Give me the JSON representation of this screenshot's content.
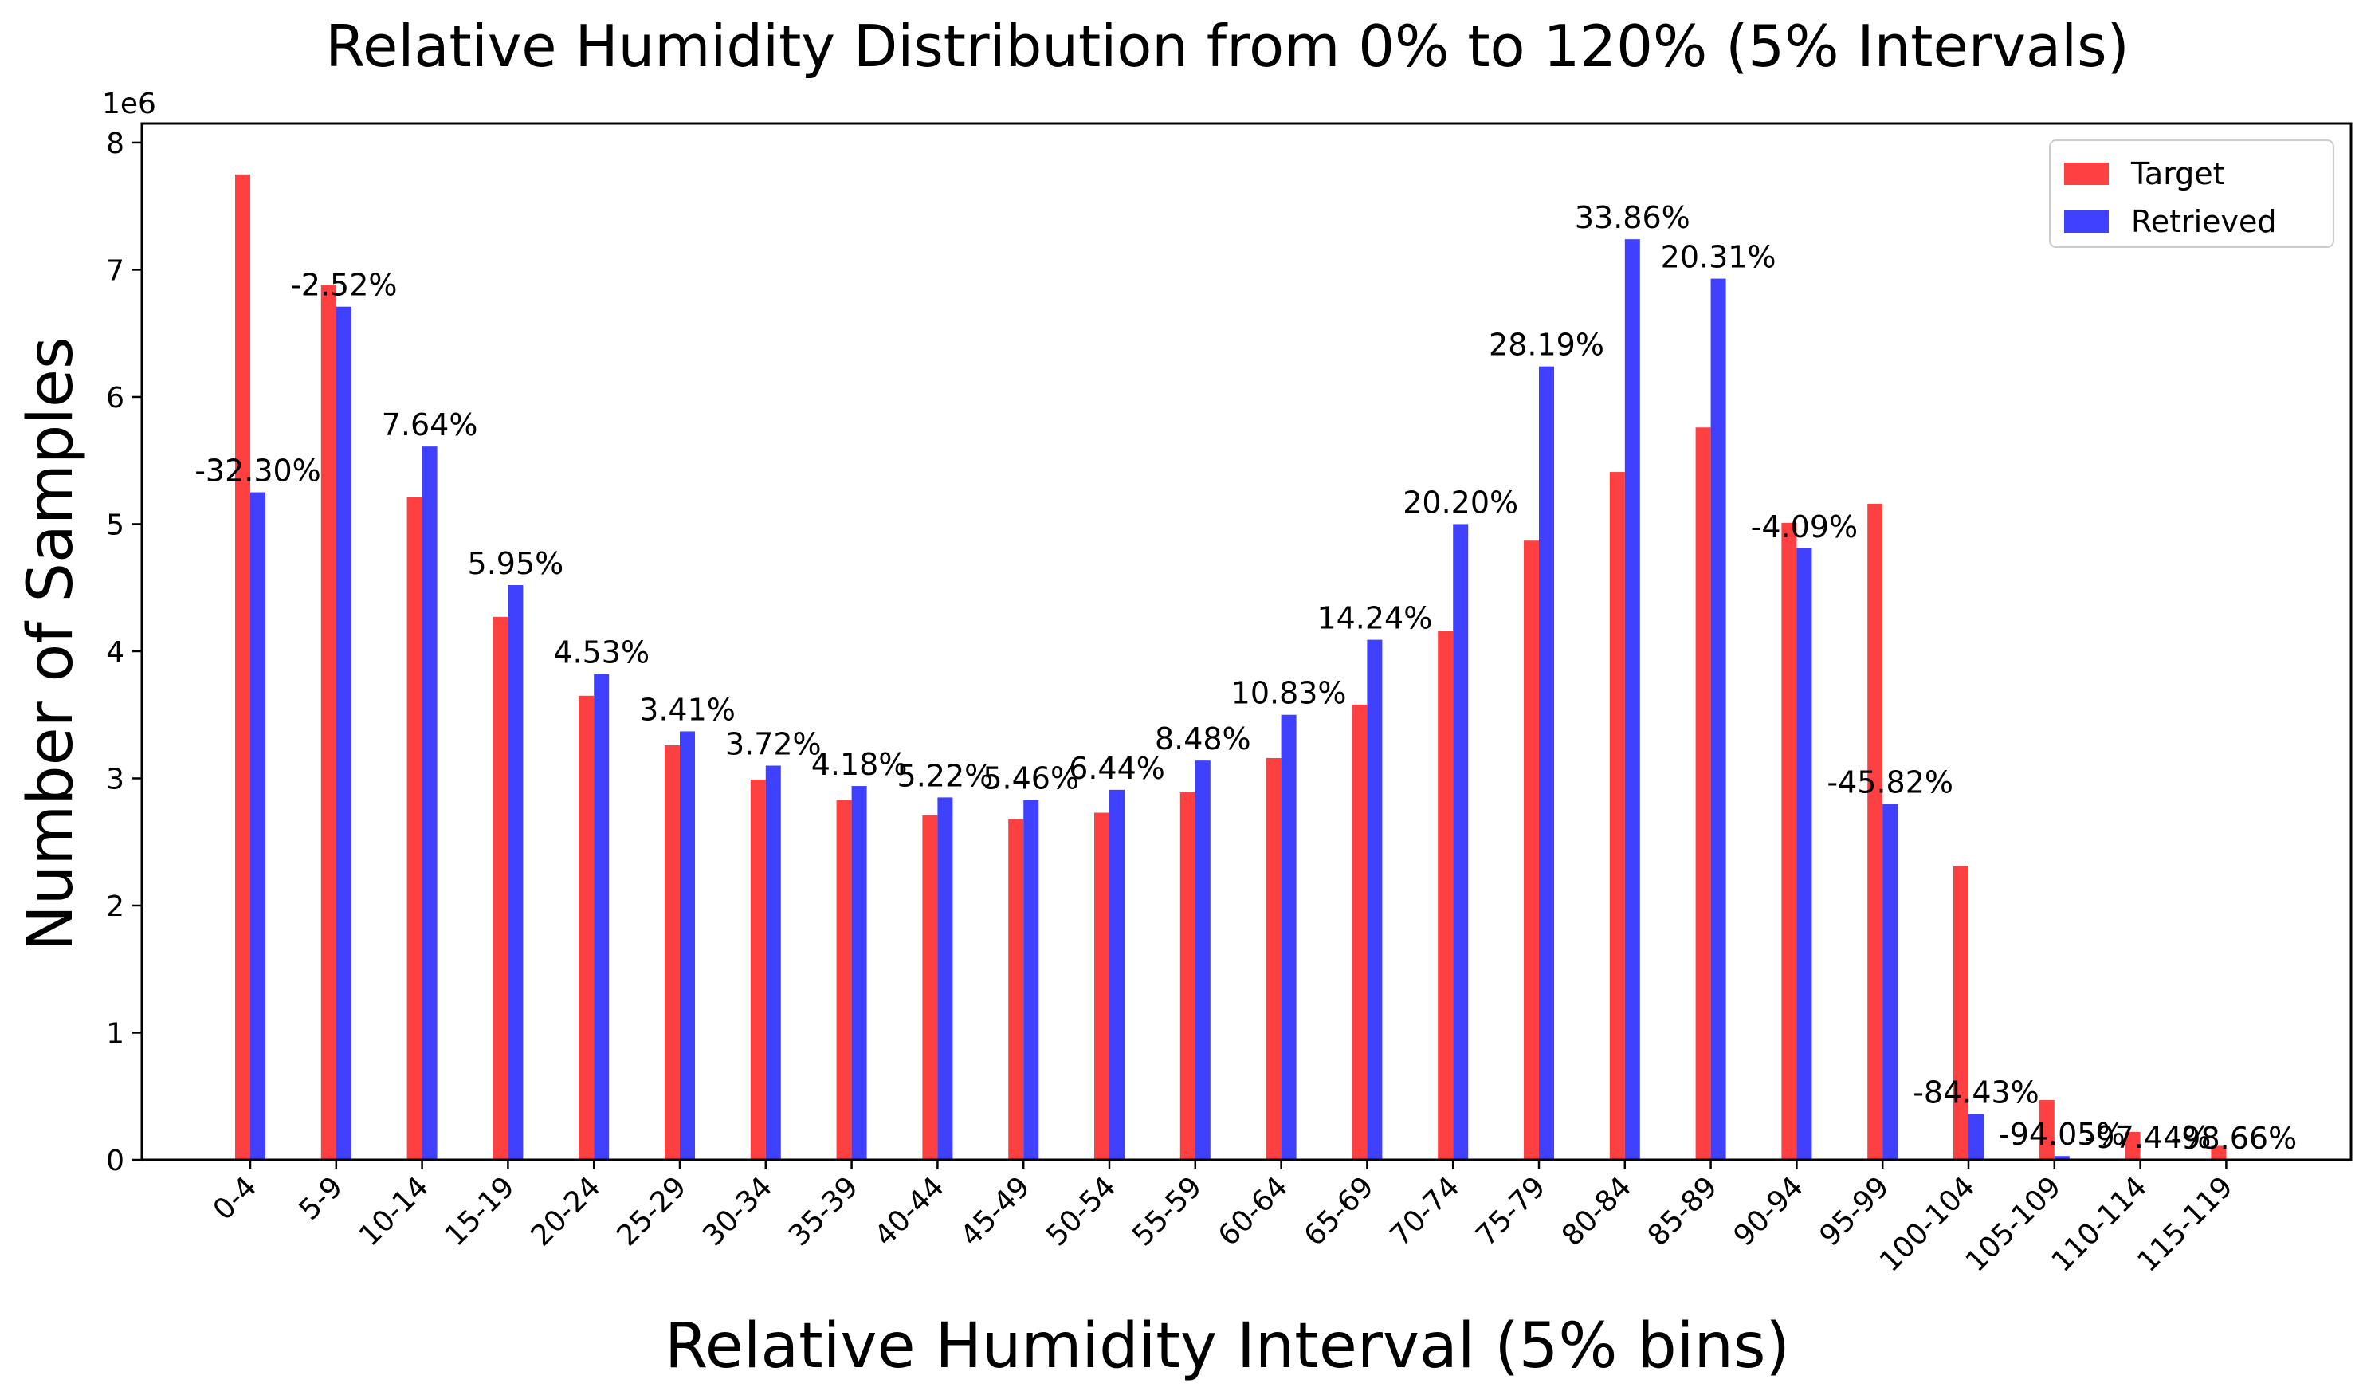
{
  "chart_data": {
    "type": "bar",
    "title": "Relative Humidity Distribution from 0% to 120% (5% Intervals)",
    "xlabel": "Relative Humidity Interval (5% bins)",
    "ylabel": "Number of Samples",
    "y_offset_label": "1e6",
    "ylim": [
      0,
      8.15
    ],
    "yticks": [
      "0",
      "1",
      "2",
      "3",
      "4",
      "5",
      "6",
      "7",
      "8"
    ],
    "grid": false,
    "legend_position": "top-right",
    "categories": [
      "0-4",
      "5-9",
      "10-14",
      "15-19",
      "20-24",
      "25-29",
      "30-34",
      "35-39",
      "40-44",
      "45-49",
      "50-54",
      "55-59",
      "60-64",
      "65-69",
      "70-74",
      "75-79",
      "80-84",
      "85-89",
      "90-94",
      "95-99",
      "100-104",
      "105-109",
      "110-114",
      "115-119"
    ],
    "series": [
      {
        "name": "Target",
        "color": "#ff4040",
        "values": [
          7.75,
          6.88,
          5.21,
          4.27,
          3.65,
          3.26,
          2.99,
          2.83,
          2.71,
          2.68,
          2.73,
          2.89,
          3.16,
          3.58,
          4.16,
          4.87,
          5.41,
          5.76,
          5.01,
          5.16,
          2.31,
          0.47,
          0.22,
          0.11
        ]
      },
      {
        "name": "Retrieved",
        "color": "#4040ff",
        "values": [
          5.25,
          6.71,
          5.61,
          4.52,
          3.82,
          3.37,
          3.1,
          2.94,
          2.85,
          2.83,
          2.91,
          3.14,
          3.5,
          4.09,
          5.0,
          6.24,
          7.24,
          6.93,
          4.81,
          2.8,
          0.36,
          0.03,
          0.006,
          0.0015
        ]
      }
    ],
    "bar_labels": [
      "-32.30%",
      "-2.52%",
      "7.64%",
      "5.95%",
      "4.53%",
      "3.41%",
      "3.72%",
      "4.18%",
      "5.22%",
      "5.46%",
      "6.44%",
      "8.48%",
      "10.83%",
      "14.24%",
      "20.20%",
      "28.19%",
      "33.86%",
      "20.31%",
      "-4.09%",
      "-45.82%",
      "-84.43%",
      "-94.05%",
      "-97.44%",
      "-98.66%"
    ]
  }
}
